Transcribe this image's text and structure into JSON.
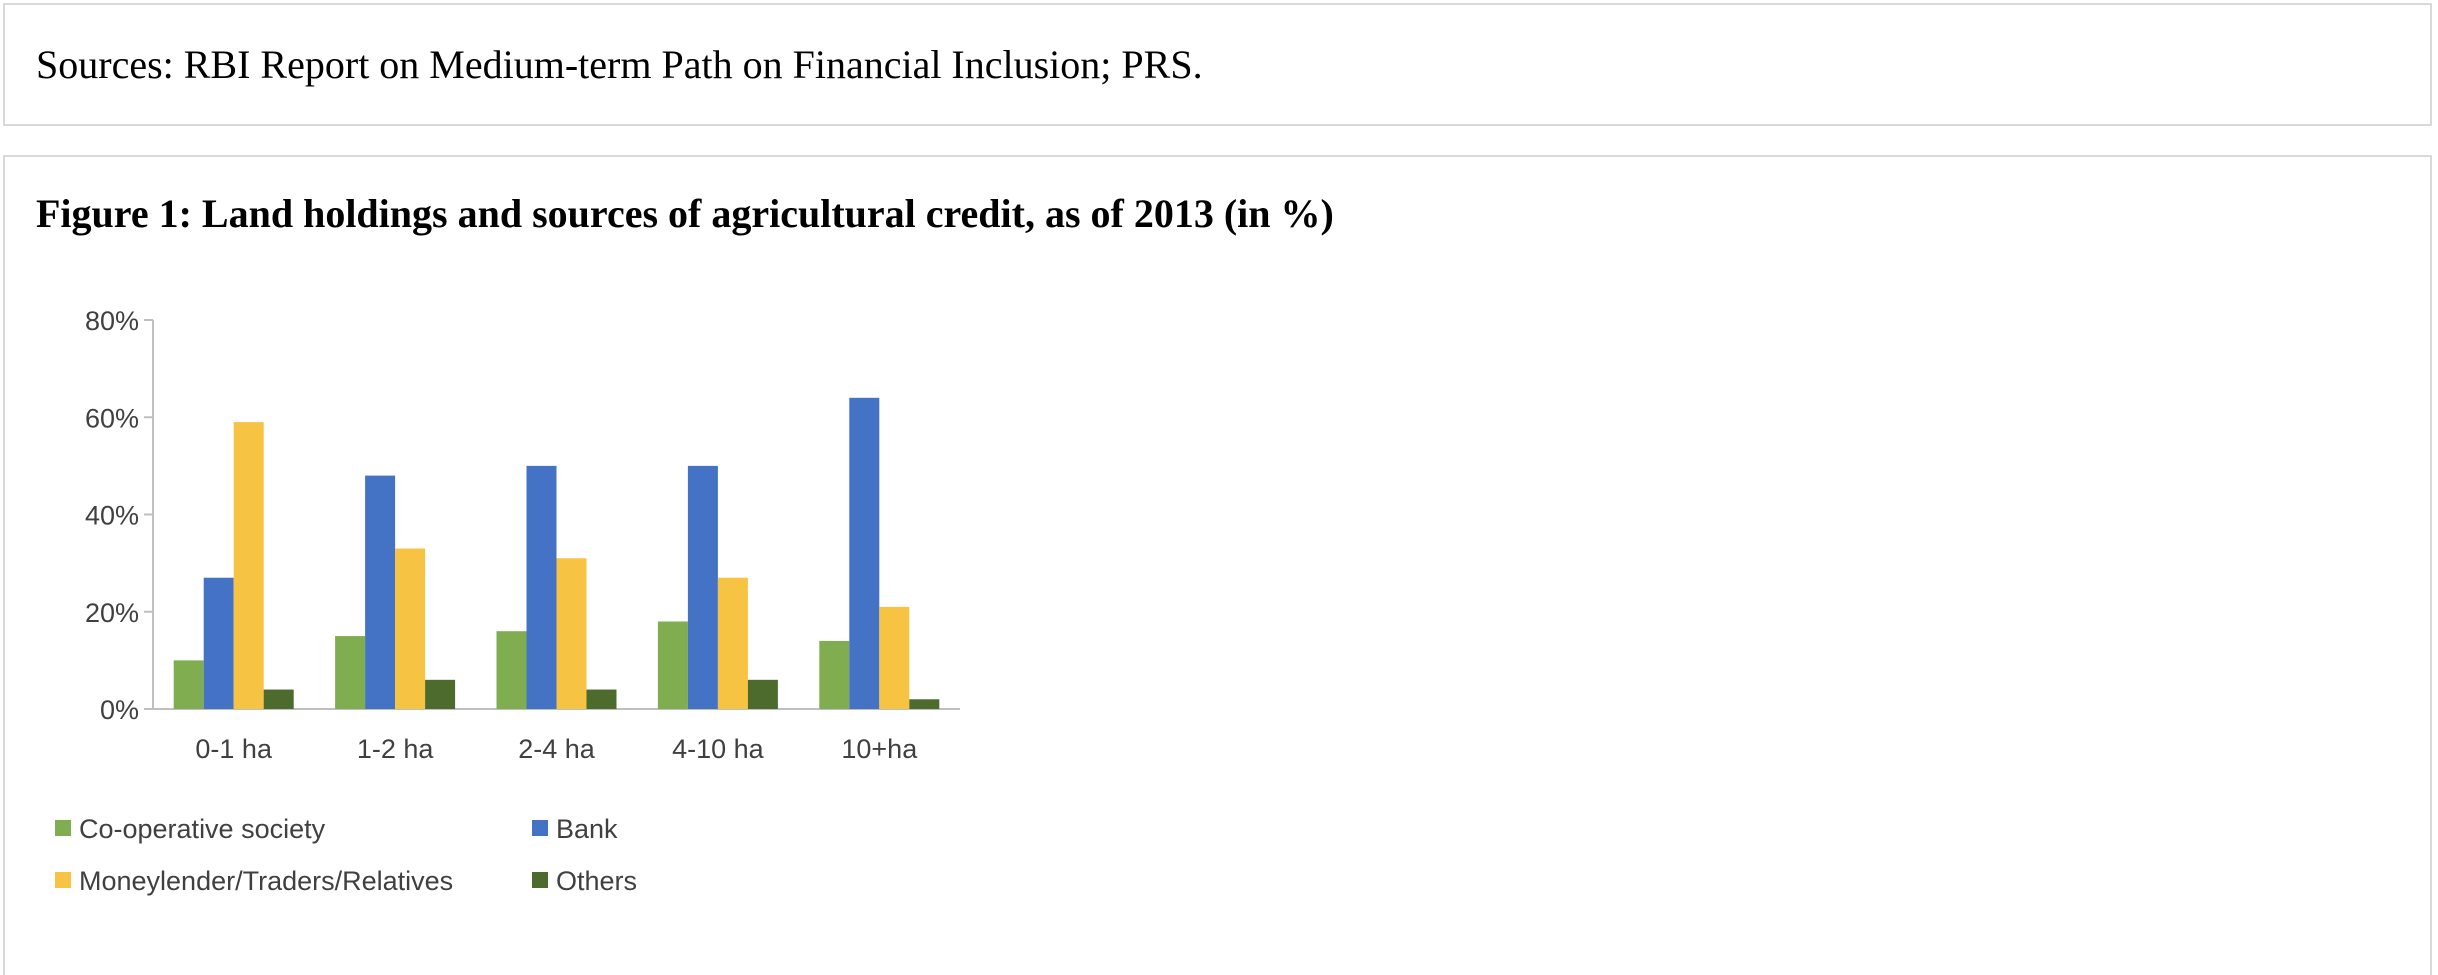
{
  "sources": {
    "text": "Sources: RBI Report on Medium-term Path on Financial Inclusion; PRS."
  },
  "figure": {
    "title": "Figure 1: Land holdings and sources of agricultural credit, as of 2013 (in %)"
  },
  "chart_data": {
    "type": "bar",
    "title": "",
    "xlabel": "",
    "ylabel": "",
    "categories": [
      "0-1 ha",
      "1-2 ha",
      "2-4 ha",
      "4-10 ha",
      "10+ha"
    ],
    "ylim": [
      0,
      80
    ],
    "yticks": [
      0,
      20,
      40,
      60,
      80
    ],
    "ytick_labels": [
      "0%",
      "20%",
      "40%",
      "60%",
      "80%"
    ],
    "grid": false,
    "legend_position": "bottom",
    "series": [
      {
        "name": "Co-operative society",
        "color": "#7fad50",
        "values": [
          10,
          15,
          16,
          18,
          14
        ]
      },
      {
        "name": "Bank",
        "color": "#4472c4",
        "values": [
          27,
          48,
          50,
          50,
          64
        ]
      },
      {
        "name": "Moneylender/Traders/Relatives",
        "color": "#f6c342",
        "values": [
          59,
          33,
          31,
          27,
          21
        ]
      },
      {
        "name": "Others",
        "color": "#4c6b2c",
        "values": [
          4,
          6,
          4,
          6,
          2
        ]
      }
    ]
  }
}
